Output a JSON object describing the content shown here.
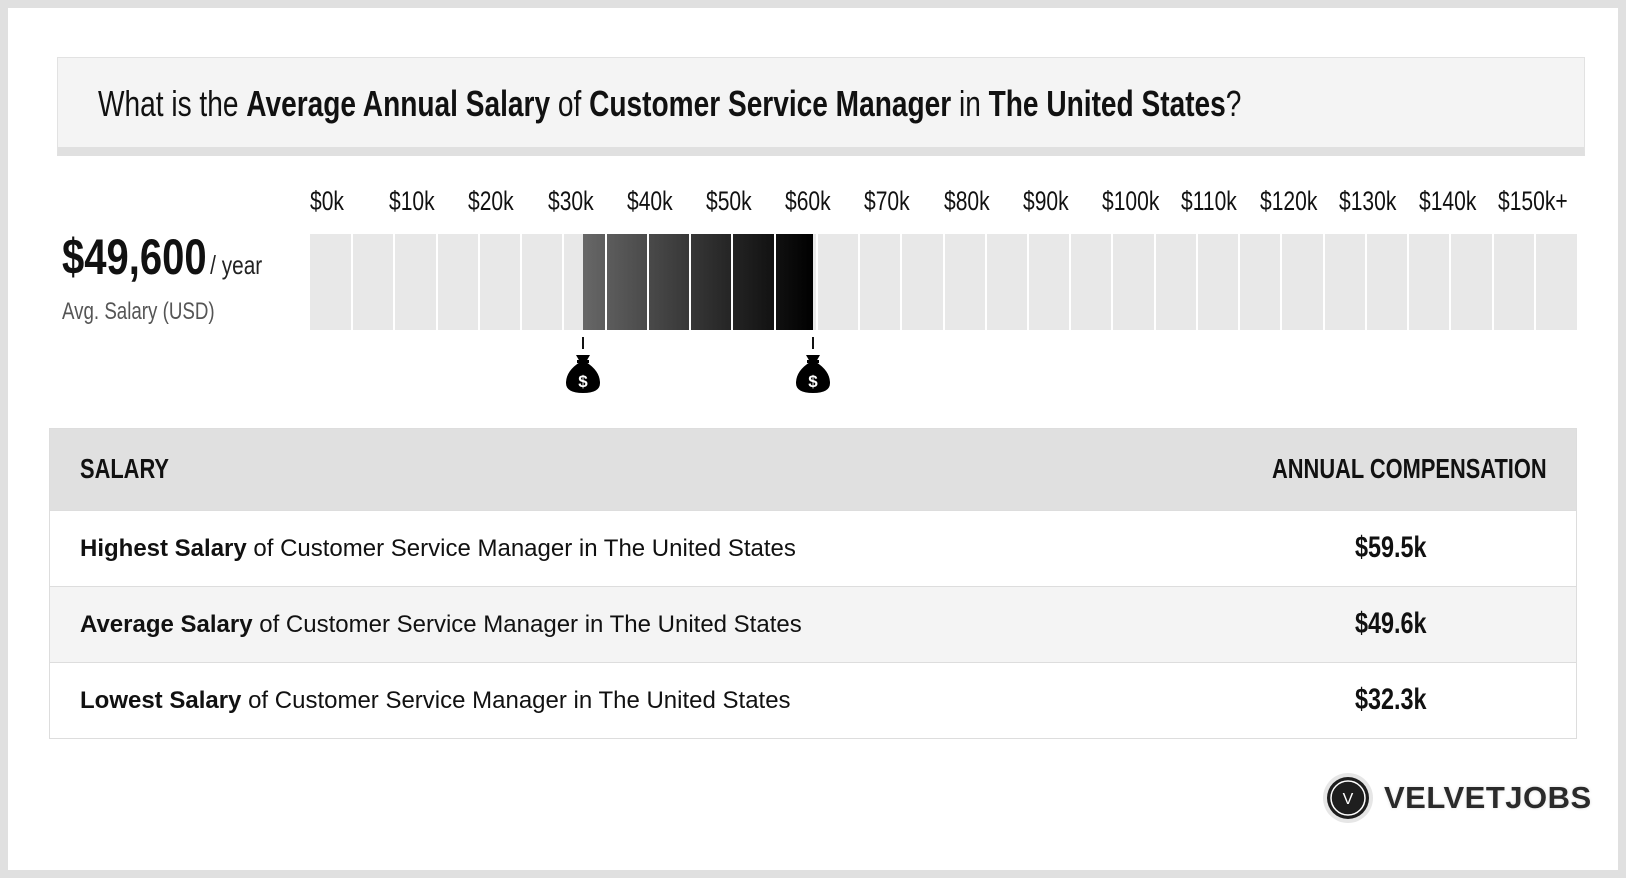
{
  "header": {
    "prefix": "What is the ",
    "metric": "Average Annual Salary",
    "of": " of ",
    "job": "Customer Service Manager",
    "in": " in ",
    "location": "The United States",
    "suffix": "?"
  },
  "summary": {
    "value": "$49,600",
    "per": "/ year",
    "label": "Avg. Salary (USD)"
  },
  "chart_data": {
    "type": "range-bar",
    "tick_labels": [
      "$0k",
      "$10k",
      "$20k",
      "$30k",
      "$40k",
      "$50k",
      "$60k",
      "$70k",
      "$80k",
      "$90k",
      "$100k",
      "$110k",
      "$120k",
      "$130k",
      "$140k",
      "$150k+"
    ],
    "xlim": [
      0,
      150
    ],
    "unit": "k USD",
    "segment_size": 5,
    "range": {
      "low": 32.3,
      "high": 59.5
    },
    "colors": {
      "empty": "#e8e8e8",
      "fill_start": "#676767",
      "fill_end": "#000000"
    }
  },
  "table": {
    "headers": [
      "SALARY",
      "ANNUAL COMPENSATION"
    ],
    "rows": [
      {
        "bold": "Highest Salary",
        "text": " of Customer Service Manager in The United States",
        "value": "$59.5k"
      },
      {
        "bold": "Average Salary",
        "text": " of Customer Service Manager in The United States",
        "value": "$49.6k"
      },
      {
        "bold": "Lowest Salary",
        "text": " of Customer Service Manager in The United States",
        "value": "$32.3k"
      }
    ]
  },
  "logo": {
    "text": "VELVETJOBS",
    "mark": "V"
  }
}
